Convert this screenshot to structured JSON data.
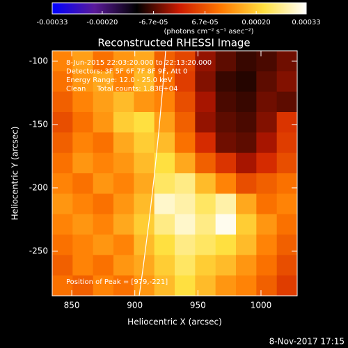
{
  "chart_data": {
    "type": "heatmap",
    "title": "Reconstructed RHESSI Image",
    "x_label": "Heliocentric X (arcsec)",
    "y_label": "Heliocentric Y (arcsec)",
    "colorbar_label": "(photons cm⁻² s⁻¹ asec⁻²)",
    "annotations": [
      "8-Jun-2015 22:03:20.000 to 22:13:20.000",
      "Detectors: 3F 5F 6F 7F 8F 9F, Att 0",
      "Energy Range: 12.0 - 25.0 keV",
      "Clean     Total counts: 1.83E+04"
    ],
    "peak_label": "Position of Peak = [979,-221]",
    "footer": "8-Nov-2017 17:15",
    "xlim": [
      834.5,
      1028.7
    ],
    "ylim": [
      -285.2,
      -91.8
    ],
    "xticks": [
      850,
      900,
      950,
      1000
    ],
    "yticks": [
      -100,
      -150,
      -200,
      -250
    ],
    "clim": [
      -0.00033,
      0.00033
    ],
    "cticks": [
      -0.00033,
      {
        "value": -0.0002,
        "label": "-0.00020"
      },
      {
        "value": -6.7e-05,
        "label": "-6.7e-05"
      },
      {
        "value": 6.7e-05,
        "label": "6.7e-05"
      },
      {
        "value": 0.0002,
        "label": "0.00020"
      },
      0.00033
    ],
    "colormap": [
      "#0000ff",
      "#5a1a9a",
      "#000000",
      "#cc1a00",
      "#ff7a00",
      "#ffe040",
      "#ffffff"
    ],
    "z": [
      [
        0.00012,
        0.00015,
        0.0001,
        0.00014,
        0.00016,
        8e-05,
        5e-05,
        -3e-05,
        -6e-05,
        -8e-05,
        -7e-05,
        -5e-05
      ],
      [
        0.0001,
        0.00014,
        0.00016,
        0.00012,
        0.00018,
        0.0001,
        4e-05,
        -4e-05,
        -8e-05,
        -9e-05,
        -6e-05,
        -4e-05
      ],
      [
        8e-05,
        0.00012,
        0.00015,
        0.00018,
        0.00014,
        0.00012,
        6e-05,
        -2e-05,
        -7e-05,
        -8e-05,
        -5e-05,
        -6e-05
      ],
      [
        6e-05,
        0.0001,
        0.00014,
        0.0002,
        0.00022,
        0.00015,
        8e-05,
        -3e-05,
        -6e-05,
        -7e-05,
        -4e-05,
        3e-05
      ],
      [
        8e-05,
        0.00012,
        0.0001,
        0.00016,
        0.0002,
        0.00018,
        0.0001,
        2e-05,
        -5e-05,
        -6e-05,
        -2e-05,
        4e-05
      ],
      [
        0.0001,
        0.00014,
        0.00012,
        0.00014,
        0.00018,
        0.00022,
        0.00016,
        8e-05,
        3e-05,
        -2e-05,
        2e-05,
        6e-05
      ],
      [
        0.00012,
        0.0001,
        0.00014,
        0.00012,
        0.00016,
        0.00024,
        0.00026,
        0.00018,
        0.00012,
        6e-05,
        8e-05,
        0.0001
      ],
      [
        0.00014,
        0.00012,
        0.0001,
        0.00014,
        0.00018,
        0.0003,
        0.00028,
        0.00024,
        0.00028,
        0.00016,
        0.0001,
        0.00012
      ],
      [
        0.00012,
        0.00014,
        0.00012,
        0.00016,
        0.0002,
        0.00026,
        0.0003,
        0.00026,
        0.00032,
        0.0002,
        0.00014,
        0.0001
      ],
      [
        0.0001,
        0.00012,
        0.00014,
        0.00012,
        0.00018,
        0.00022,
        0.00026,
        0.00024,
        0.00022,
        0.00018,
        0.00012,
        8e-05
      ],
      [
        8e-05,
        0.00012,
        0.0001,
        0.00014,
        0.00016,
        0.0002,
        0.00024,
        0.0002,
        0.00018,
        0.00014,
        0.0001,
        6e-05
      ],
      [
        0.0001,
        8e-05,
        0.00012,
        0.0001,
        0.00014,
        0.00018,
        0.00022,
        0.00018,
        0.00014,
        0.00012,
        8e-05,
        4e-05
      ]
    ]
  }
}
